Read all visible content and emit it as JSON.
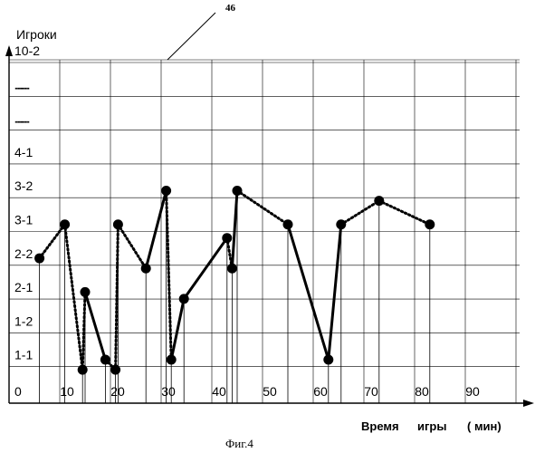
{
  "figure": {
    "reference_number": "46",
    "y_axis_title": "Игроки",
    "x_axis_title_parts": [
      "Время",
      "игры",
      "( мин)"
    ],
    "caption": "Фиг.4"
  },
  "chart_data": {
    "type": "line",
    "y_ticks": [
      "1-1",
      "1-2",
      "2-1",
      "2-2",
      "3-1",
      "3-2",
      "4-1",
      "..........",
      "..........",
      "10-2"
    ],
    "x_ticks": [
      "0",
      "10",
      "20",
      "30",
      "40",
      "50",
      "60",
      "70",
      "80",
      "90"
    ],
    "xlim": [
      0,
      100
    ],
    "points": [
      {
        "x": 6,
        "y": 4.1
      },
      {
        "x": 11,
        "y": 5.1
      },
      {
        "x": 14.5,
        "y": 0.8
      },
      {
        "x": 15,
        "y": 3.1
      },
      {
        "x": 19,
        "y": 1.1
      },
      {
        "x": 21,
        "y": 0.8
      },
      {
        "x": 21.5,
        "y": 5.1
      },
      {
        "x": 27,
        "y": 3.8
      },
      {
        "x": 31,
        "y": 6.1
      },
      {
        "x": 32,
        "y": 1.1
      },
      {
        "x": 34.5,
        "y": 2.9
      },
      {
        "x": 43,
        "y": 4.7
      },
      {
        "x": 44,
        "y": 3.8
      },
      {
        "x": 45,
        "y": 6.1
      },
      {
        "x": 55,
        "y": 5.1
      },
      {
        "x": 63,
        "y": 1.1
      },
      {
        "x": 65.5,
        "y": 5.1
      },
      {
        "x": 73,
        "y": 5.8
      },
      {
        "x": 83,
        "y": 5.1
      }
    ],
    "segments": [
      {
        "from": 0,
        "to": 1,
        "style": "dotted"
      },
      {
        "from": 1,
        "to": 2,
        "style": "dotted"
      },
      {
        "from": 3,
        "to": 2,
        "style": "dotted"
      },
      {
        "from": 3,
        "to": 4,
        "style": "solid"
      },
      {
        "from": 4,
        "to": 5,
        "style": "dotted"
      },
      {
        "from": 5,
        "to": 6,
        "style": "dotted"
      },
      {
        "from": 6,
        "to": 7,
        "style": "dotted"
      },
      {
        "from": 7,
        "to": 8,
        "style": "solid"
      },
      {
        "from": 8,
        "to": 9,
        "style": "dotted"
      },
      {
        "from": 9,
        "to": 10,
        "style": "solid"
      },
      {
        "from": 10,
        "to": 11,
        "style": "solid"
      },
      {
        "from": 11,
        "to": 12,
        "style": "dotted"
      },
      {
        "from": 12,
        "to": 13,
        "style": "solid"
      },
      {
        "from": 13,
        "to": 14,
        "style": "dotted"
      },
      {
        "from": 14,
        "to": 15,
        "style": "solid"
      },
      {
        "from": 15,
        "to": 16,
        "style": "solid"
      },
      {
        "from": 16,
        "to": 17,
        "style": "dotted"
      },
      {
        "from": 17,
        "to": 18,
        "style": "dotted"
      }
    ],
    "grid": true,
    "marker": "filled-circle",
    "color": "#000000"
  }
}
